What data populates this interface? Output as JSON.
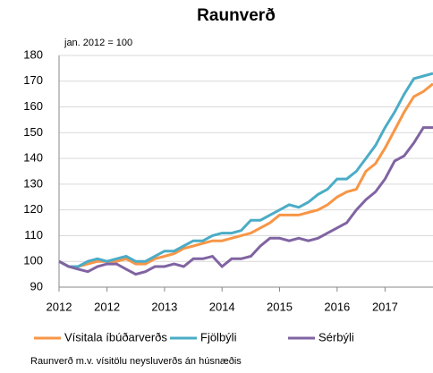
{
  "chart_data": {
    "type": "line",
    "title": "Raunverð",
    "subtitle": "jan. 2012 = 100",
    "note": "Raunverð m.v. vísitölu neysluverðs án húsnæðis",
    "categories": [
      "2012",
      null,
      null,
      null,
      null,
      "2012",
      null,
      null,
      null,
      null,
      null,
      "2013",
      null,
      null,
      null,
      null,
      null,
      "2014",
      null,
      null,
      null,
      null,
      null,
      "2015",
      null,
      null,
      null,
      null,
      null,
      "2016",
      null,
      null,
      null,
      null,
      "2017",
      null,
      null,
      null,
      null,
      null
    ],
    "series": [
      {
        "name": "Vísitala íbúðarverðs",
        "color": "#f79646",
        "values": [
          100,
          98,
          98,
          99,
          100,
          100,
          100,
          101,
          99,
          99,
          101,
          102,
          103,
          105,
          106,
          107,
          108,
          108,
          109,
          110,
          111,
          113,
          115,
          118,
          118,
          118,
          119,
          120,
          122,
          125,
          127,
          128,
          135,
          138,
          144,
          151,
          158,
          164,
          166,
          169
        ]
      },
      {
        "name": "Fjölbýli",
        "color": "#4bacc6",
        "values": [
          100,
          98,
          98,
          100,
          101,
          100,
          101,
          102,
          100,
          100,
          102,
          104,
          104,
          106,
          108,
          108,
          110,
          111,
          111,
          112,
          116,
          116,
          118,
          120,
          122,
          121,
          123,
          126,
          128,
          132,
          132,
          135,
          140,
          145,
          152,
          158,
          165,
          171,
          172,
          173
        ]
      },
      {
        "name": "Sérbýli",
        "color": "#8064a2",
        "values": [
          100,
          98,
          97,
          96,
          98,
          99,
          99,
          97,
          95,
          96,
          98,
          98,
          99,
          98,
          101,
          101,
          102,
          98,
          101,
          101,
          102,
          106,
          109,
          109,
          108,
          109,
          108,
          109,
          111,
          113,
          115,
          120,
          124,
          127,
          132,
          139,
          141,
          146,
          152,
          152
        ]
      }
    ],
    "ylim": [
      90,
      180
    ],
    "yticks": [
      90,
      100,
      110,
      120,
      130,
      140,
      150,
      160,
      170,
      180
    ],
    "grid": true
  }
}
